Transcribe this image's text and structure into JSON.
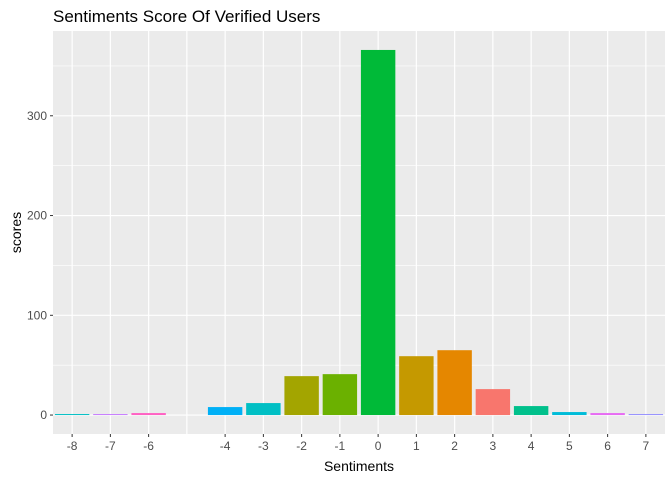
{
  "chart_data": {
    "type": "bar",
    "title": "Sentiments Score Of Verified Users",
    "xlabel": "Sentiments",
    "ylabel": "scores",
    "categories": [
      "-8",
      "-7",
      "-6",
      "-4",
      "-3",
      "-2",
      "-1",
      "0",
      "1",
      "2",
      "3",
      "4",
      "5",
      "6",
      "7"
    ],
    "x": [
      -8,
      -7,
      -6,
      -4,
      -3,
      -2,
      -1,
      0,
      1,
      2,
      3,
      4,
      5,
      6,
      7
    ],
    "values": [
      1,
      1,
      2,
      8,
      12,
      39,
      41,
      366,
      59,
      65,
      26,
      9,
      3,
      2,
      1
    ],
    "colors": [
      "#00BFC4",
      "#C77CFF",
      "#FF61C3",
      "#00B0F6",
      "#00BFC4",
      "#A3A500",
      "#6BB100",
      "#00BA38",
      "#C59900",
      "#E58700",
      "#F8766D",
      "#00C08B",
      "#00BCD8",
      "#E76BF3",
      "#9590FF"
    ],
    "ylim": [
      -19,
      385
    ],
    "yticks": [
      0,
      100,
      200,
      300
    ],
    "grid": true,
    "panel_background": "#EBEBEB",
    "grid_color": "#FFFFFF"
  }
}
